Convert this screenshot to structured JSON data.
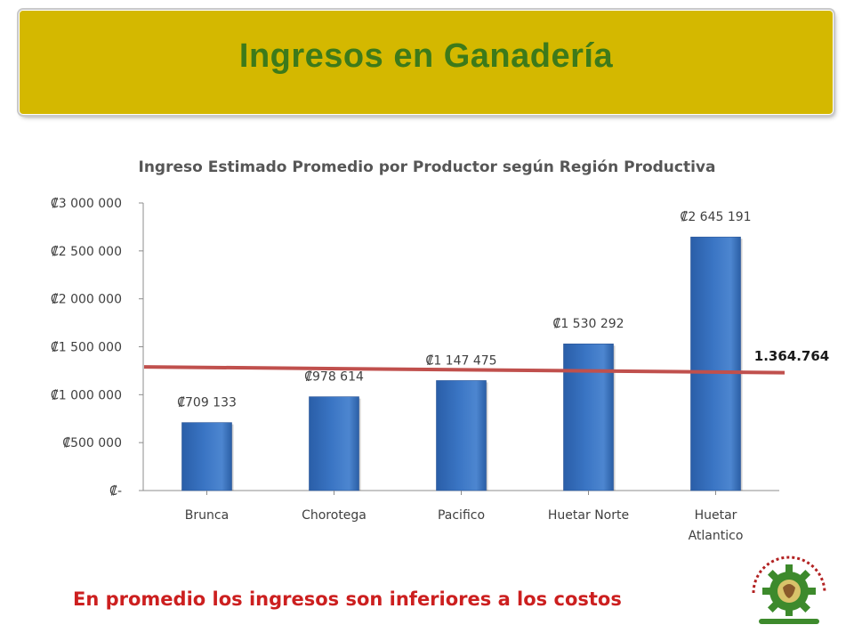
{
  "slide": {
    "title": "Ingresos en Ganadería",
    "footer_note": "En promedio los ingresos son inferiores a los costos",
    "logo_name": "corporacion-ganadera-corfoga-logo"
  },
  "colors": {
    "banner": "#d4b800",
    "title_text": "#3d7a1a",
    "bar": "#3a75c4",
    "average_line": "#c0504d",
    "footer_text": "#cc1f1f",
    "logo_green": "#3d8a2c",
    "logo_red": "#b22222"
  },
  "chart_data": {
    "type": "bar",
    "title": "Ingreso Estimado Promedio por Productor según Región Productiva",
    "categories": [
      "Brunca",
      "Chorotega",
      "Pacifico",
      "Huetar Norte",
      "Huetar Atlantico"
    ],
    "category_lines": [
      [
        "Brunca"
      ],
      [
        "Chorotega"
      ],
      [
        "Pacifico"
      ],
      [
        "Huetar Norte"
      ],
      [
        "Huetar",
        "Atlantico"
      ]
    ],
    "values": [
      709133,
      978614,
      1147475,
      1530292,
      2645191
    ],
    "value_labels": [
      "₡709 133",
      "₡978 614",
      "₡1 147 475",
      "₡1 530 292",
      "₡2 645 191"
    ],
    "ylim": [
      0,
      3000000
    ],
    "y_ticks": [
      0,
      500000,
      1000000,
      1500000,
      2000000,
      2500000,
      3000000
    ],
    "y_tick_labels": [
      "₡-",
      "₡500 000",
      "₡1 000 000",
      "₡1 500 000",
      "₡2 000 000",
      "₡2 500 000",
      "₡3 000 000"
    ],
    "grid": false,
    "average_line": {
      "label": "1.364.764",
      "start_value": 1290000,
      "end_value": 1230000
    }
  }
}
